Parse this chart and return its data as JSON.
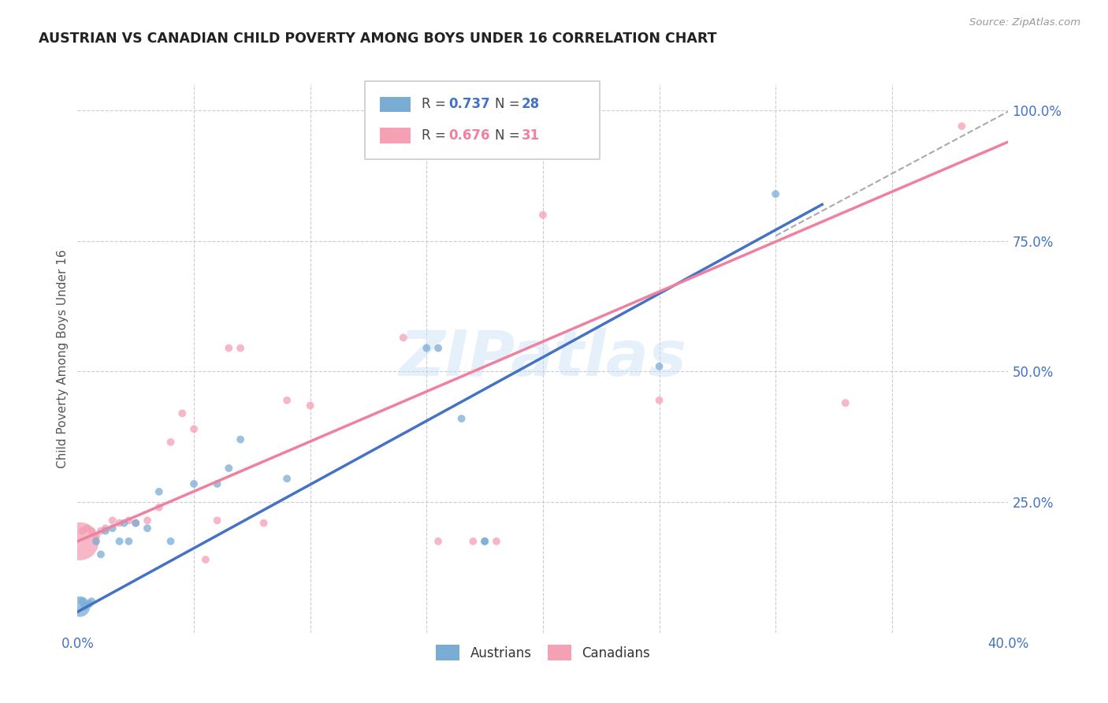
{
  "title": "AUSTRIAN VS CANADIAN CHILD POVERTY AMONG BOYS UNDER 16 CORRELATION CHART",
  "source": "Source: ZipAtlas.com",
  "ylabel": "Child Poverty Among Boys Under 16",
  "xlim": [
    0.0,
    0.4
  ],
  "ylim": [
    0.0,
    1.05
  ],
  "xticks": [
    0.0,
    0.05,
    0.1,
    0.15,
    0.2,
    0.25,
    0.3,
    0.35,
    0.4
  ],
  "yticks": [
    0.0,
    0.25,
    0.5,
    0.75,
    1.0
  ],
  "ytick_labels": [
    "",
    "25.0%",
    "50.0%",
    "75.0%",
    "100.0%"
  ],
  "xtick_labels": [
    "0.0%",
    "",
    "",
    "",
    "",
    "",
    "",
    "",
    "40.0%"
  ],
  "grid_color": "#cccccc",
  "watermark": "ZIPatlas",
  "austrians_R": 0.737,
  "austrians_N": 28,
  "canadians_R": 0.676,
  "canadians_N": 31,
  "austrians_color": "#7aadd4",
  "canadians_color": "#f4a0b5",
  "line_blue": "#4472c4",
  "line_pink": "#f080a0",
  "diag_color": "#aaaaaa",
  "austrians_x": [
    0.001,
    0.002,
    0.003,
    0.005,
    0.006,
    0.008,
    0.01,
    0.012,
    0.015,
    0.018,
    0.02,
    0.022,
    0.025,
    0.03,
    0.035,
    0.04,
    0.05,
    0.06,
    0.065,
    0.07,
    0.09,
    0.15,
    0.155,
    0.165,
    0.175,
    0.25,
    0.3,
    0.175
  ],
  "austrians_y": [
    0.05,
    0.06,
    0.05,
    0.055,
    0.06,
    0.175,
    0.15,
    0.195,
    0.2,
    0.175,
    0.21,
    0.175,
    0.21,
    0.2,
    0.27,
    0.175,
    0.285,
    0.285,
    0.315,
    0.37,
    0.295,
    0.545,
    0.545,
    0.41,
    0.175,
    0.51,
    0.84,
    0.175
  ],
  "austrians_size": [
    350,
    50,
    50,
    50,
    50,
    50,
    50,
    50,
    50,
    50,
    50,
    50,
    50,
    50,
    50,
    50,
    50,
    50,
    50,
    50,
    50,
    50,
    50,
    50,
    50,
    50,
    50,
    50
  ],
  "canadians_x": [
    0.001,
    0.002,
    0.004,
    0.006,
    0.008,
    0.01,
    0.012,
    0.015,
    0.018,
    0.022,
    0.025,
    0.03,
    0.035,
    0.04,
    0.045,
    0.05,
    0.055,
    0.06,
    0.065,
    0.07,
    0.08,
    0.09,
    0.1,
    0.14,
    0.155,
    0.17,
    0.18,
    0.2,
    0.25,
    0.33,
    0.38
  ],
  "canadians_y": [
    0.175,
    0.195,
    0.2,
    0.195,
    0.185,
    0.195,
    0.2,
    0.215,
    0.21,
    0.215,
    0.21,
    0.215,
    0.24,
    0.365,
    0.42,
    0.39,
    0.14,
    0.215,
    0.545,
    0.545,
    0.21,
    0.445,
    0.435,
    0.565,
    0.175,
    0.175,
    0.175,
    0.8,
    0.445,
    0.44,
    0.97
  ],
  "canadians_size": [
    1200,
    50,
    50,
    50,
    50,
    50,
    50,
    50,
    50,
    50,
    50,
    50,
    50,
    50,
    50,
    50,
    50,
    50,
    50,
    50,
    50,
    50,
    50,
    50,
    50,
    50,
    50,
    50,
    50,
    50,
    50
  ],
  "blue_line_x": [
    0.0,
    0.32
  ],
  "blue_line_y": [
    0.04,
    0.82
  ],
  "pink_line_x": [
    0.0,
    0.4
  ],
  "pink_line_y": [
    0.175,
    0.94
  ],
  "diag_line_x": [
    0.3,
    0.405
  ],
  "diag_line_y": [
    0.76,
    1.01
  ]
}
